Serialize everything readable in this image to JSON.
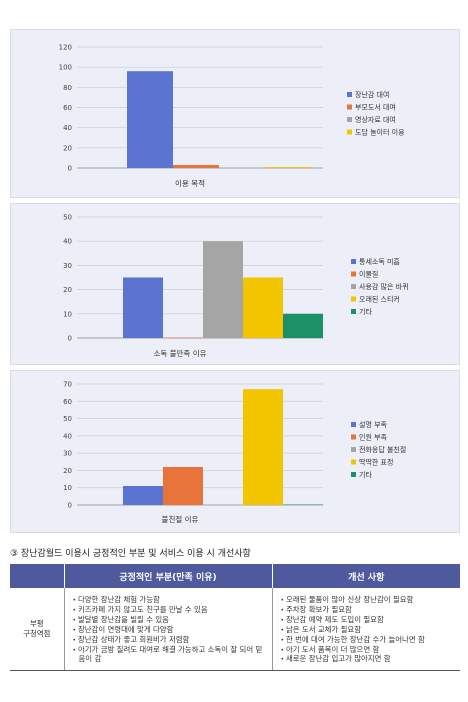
{
  "chart_data": [
    {
      "type": "bar",
      "xlabel": "이용 목적",
      "ylim": [
        0,
        120
      ],
      "yticks": [
        0,
        20,
        40,
        60,
        80,
        100,
        120
      ],
      "series": [
        {
          "name": "장난감 대여",
          "values": [
            96
          ],
          "color": "#5b73d1"
        },
        {
          "name": "부모도서 대여",
          "values": [
            3
          ],
          "color": "#e8743b"
        },
        {
          "name": "영상자료 대여",
          "values": [
            0
          ],
          "color": "#a5a5a5"
        },
        {
          "name": "도담 놀이터 이용",
          "values": [
            1
          ],
          "color": "#f2c500"
        }
      ],
      "legend": "right"
    },
    {
      "type": "bar",
      "xlabel": "소독 불만족 이유",
      "ylim": [
        0,
        50
      ],
      "yticks": [
        0,
        10,
        20,
        30,
        40,
        50
      ],
      "series": [
        {
          "name": "통세소독 미흡",
          "values": [
            25
          ],
          "color": "#5b73d1"
        },
        {
          "name": "이물질",
          "values": [
            0
          ],
          "color": "#e8743b"
        },
        {
          "name": "사용감 많은 바퀴",
          "values": [
            40
          ],
          "color": "#a5a5a5"
        },
        {
          "name": "오래된 스티커",
          "values": [
            25
          ],
          "color": "#f2c500"
        },
        {
          "name": "기타",
          "values": [
            10
          ],
          "color": "#1e9068"
        }
      ],
      "legend": "right"
    },
    {
      "type": "bar",
      "xlabel": "불친절 이유",
      "ylim": [
        0,
        70
      ],
      "yticks": [
        0,
        10,
        20,
        30,
        40,
        50,
        60,
        70
      ],
      "series": [
        {
          "name": "설명 부족",
          "values": [
            11
          ],
          "color": "#5b73d1"
        },
        {
          "name": "인원 부족",
          "values": [
            22
          ],
          "color": "#e8743b"
        },
        {
          "name": "전화응답 불친절",
          "values": [
            0
          ],
          "color": "#a5a5a5"
        },
        {
          "name": "딱딱한 표정",
          "values": [
            67
          ],
          "color": "#f2c500"
        },
        {
          "name": "기타",
          "values": [
            0
          ],
          "color": "#1e9068"
        }
      ],
      "legend": "right"
    }
  ],
  "section": {
    "heading": "③ 장난감월드 이용시 긍정적인 부분 및 서비스 이용 시 개선사항"
  },
  "table": {
    "headers": [
      "",
      "긍정적인 부분(만족 이유)",
      "개선 사항"
    ],
    "row_label_line1": "부평",
    "row_label_line2": "구청역점",
    "positives": [
      "다양한 장난감 체험 가능함",
      "키즈카페 가지 않고도 친구를 만날 수 있음",
      "발달별 장난감을 빌릴 수 있음",
      "장난감이 연령대에 맞게 다양함",
      "장난감 상태가 좋고 회원비가 저렴함",
      "아기가 금방 질려도 대여로 해결 가능하고 소독이 잘 되어 믿음이 감"
    ],
    "improvements": [
      "오래된 물품이 많아 신상 장난감이 필요함",
      "주차장 확보가 필요함",
      "장난감 예약 제도 도입이 필요함",
      "낡은 도서 교체가 필요함",
      "한 번에 대여 가능한 장난감 수가 늘어나면 함",
      "아기 도서 품목이 더 많으면 함",
      "새로운 장난감 입고가 많아지면 함"
    ]
  }
}
